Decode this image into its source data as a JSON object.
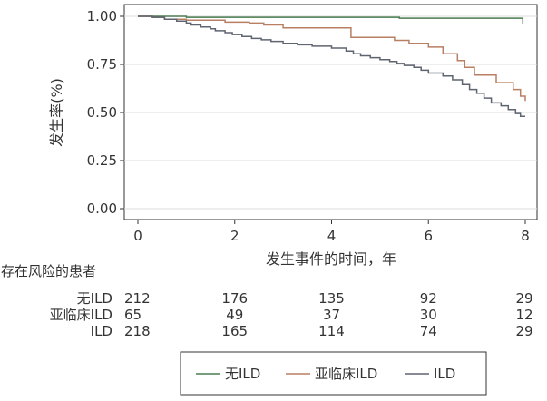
{
  "chart_data": {
    "type": "line",
    "subtype": "kaplan-meier step curves",
    "xlabel": "发生事件的时间，年",
    "ylabel": "发生率(%)",
    "xlim": [
      0,
      8
    ],
    "ylim": [
      0,
      1
    ],
    "xticks": [
      0,
      2,
      4,
      6,
      8
    ],
    "xtick_labels": [
      "0",
      "2",
      "4",
      "6",
      "8"
    ],
    "yticks": [
      0,
      0.25,
      0.5,
      0.75,
      1.0
    ],
    "ytick_labels": [
      "0.00",
      "0.25",
      "0.50",
      "0.75",
      "1.00"
    ],
    "grid": "horizontal gridlines",
    "series": [
      {
        "name": "无ILD",
        "color": "#4a7d50",
        "points": [
          [
            0,
            1.0
          ],
          [
            1.0,
            1.0
          ],
          [
            1.0,
            0.995
          ],
          [
            5.4,
            0.995
          ],
          [
            5.4,
            0.99
          ],
          [
            7.95,
            0.99
          ],
          [
            7.95,
            0.96
          ]
        ]
      },
      {
        "name": "亚临床ILD",
        "color": "#b87f62",
        "points": [
          [
            0,
            1.0
          ],
          [
            0.3,
            1.0
          ],
          [
            0.3,
            0.995
          ],
          [
            0.55,
            0.995
          ],
          [
            0.55,
            0.985
          ],
          [
            1.0,
            0.985
          ],
          [
            1.0,
            0.98
          ],
          [
            1.8,
            0.98
          ],
          [
            1.8,
            0.97
          ],
          [
            2.3,
            0.97
          ],
          [
            2.3,
            0.965
          ],
          [
            2.6,
            0.965
          ],
          [
            2.6,
            0.955
          ],
          [
            3.0,
            0.955
          ],
          [
            3.0,
            0.94
          ],
          [
            4.4,
            0.94
          ],
          [
            4.4,
            0.89
          ],
          [
            5.3,
            0.89
          ],
          [
            5.3,
            0.875
          ],
          [
            5.6,
            0.875
          ],
          [
            5.6,
            0.86
          ],
          [
            6.0,
            0.86
          ],
          [
            6.0,
            0.84
          ],
          [
            6.3,
            0.84
          ],
          [
            6.3,
            0.805
          ],
          [
            6.6,
            0.805
          ],
          [
            6.6,
            0.77
          ],
          [
            6.75,
            0.77
          ],
          [
            6.75,
            0.735
          ],
          [
            6.95,
            0.735
          ],
          [
            6.95,
            0.695
          ],
          [
            7.4,
            0.695
          ],
          [
            7.4,
            0.655
          ],
          [
            7.75,
            0.655
          ],
          [
            7.75,
            0.62
          ],
          [
            7.9,
            0.62
          ],
          [
            7.9,
            0.585
          ],
          [
            8.0,
            0.585
          ],
          [
            8.0,
            0.56
          ]
        ]
      },
      {
        "name": "ILD",
        "color": "#5e6470",
        "points": [
          [
            0,
            1.0
          ],
          [
            0.3,
            1.0
          ],
          [
            0.3,
            0.995
          ],
          [
            0.55,
            0.995
          ],
          [
            0.55,
            0.985
          ],
          [
            0.8,
            0.985
          ],
          [
            0.8,
            0.975
          ],
          [
            1.0,
            0.975
          ],
          [
            1.0,
            0.965
          ],
          [
            1.1,
            0.965
          ],
          [
            1.1,
            0.955
          ],
          [
            1.3,
            0.955
          ],
          [
            1.3,
            0.945
          ],
          [
            1.5,
            0.945
          ],
          [
            1.5,
            0.935
          ],
          [
            1.6,
            0.935
          ],
          [
            1.6,
            0.925
          ],
          [
            1.8,
            0.925
          ],
          [
            1.8,
            0.915
          ],
          [
            1.95,
            0.915
          ],
          [
            1.95,
            0.905
          ],
          [
            2.15,
            0.905
          ],
          [
            2.15,
            0.895
          ],
          [
            2.35,
            0.895
          ],
          [
            2.35,
            0.885
          ],
          [
            2.55,
            0.885
          ],
          [
            2.55,
            0.878
          ],
          [
            2.75,
            0.878
          ],
          [
            2.75,
            0.87
          ],
          [
            3.0,
            0.87
          ],
          [
            3.0,
            0.86
          ],
          [
            3.3,
            0.86
          ],
          [
            3.3,
            0.852
          ],
          [
            3.6,
            0.852
          ],
          [
            3.6,
            0.845
          ],
          [
            4.0,
            0.845
          ],
          [
            4.0,
            0.835
          ],
          [
            4.3,
            0.835
          ],
          [
            4.3,
            0.82
          ],
          [
            4.45,
            0.82
          ],
          [
            4.45,
            0.805
          ],
          [
            4.6,
            0.805
          ],
          [
            4.6,
            0.795
          ],
          [
            4.8,
            0.795
          ],
          [
            4.8,
            0.785
          ],
          [
            5.0,
            0.785
          ],
          [
            5.0,
            0.775
          ],
          [
            5.2,
            0.775
          ],
          [
            5.2,
            0.765
          ],
          [
            5.35,
            0.765
          ],
          [
            5.35,
            0.755
          ],
          [
            5.5,
            0.755
          ],
          [
            5.5,
            0.745
          ],
          [
            5.7,
            0.745
          ],
          [
            5.7,
            0.735
          ],
          [
            5.85,
            0.735
          ],
          [
            5.85,
            0.72
          ],
          [
            6.0,
            0.72
          ],
          [
            6.0,
            0.705
          ],
          [
            6.3,
            0.705
          ],
          [
            6.3,
            0.69
          ],
          [
            6.5,
            0.69
          ],
          [
            6.5,
            0.67
          ],
          [
            6.7,
            0.67
          ],
          [
            6.7,
            0.645
          ],
          [
            6.85,
            0.645
          ],
          [
            6.85,
            0.62
          ],
          [
            7.0,
            0.62
          ],
          [
            7.0,
            0.6
          ],
          [
            7.15,
            0.6
          ],
          [
            7.15,
            0.575
          ],
          [
            7.3,
            0.575
          ],
          [
            7.3,
            0.55
          ],
          [
            7.5,
            0.55
          ],
          [
            7.5,
            0.535
          ],
          [
            7.65,
            0.535
          ],
          [
            7.65,
            0.515
          ],
          [
            7.8,
            0.515
          ],
          [
            7.8,
            0.495
          ],
          [
            7.9,
            0.495
          ],
          [
            7.9,
            0.48
          ],
          [
            8.0,
            0.48
          ]
        ]
      }
    ],
    "risk_table": {
      "title": "存在风险的患者",
      "times": [
        0,
        2,
        4,
        6,
        8
      ],
      "rows": [
        {
          "label": "无ILD",
          "values": [
            "212",
            "176",
            "135",
            "92",
            "29"
          ]
        },
        {
          "label": "亚临床ILD",
          "values": [
            "65",
            "49",
            "37",
            "30",
            "12"
          ]
        },
        {
          "label": "ILD",
          "values": [
            "218",
            "165",
            "114",
            "74",
            "29"
          ]
        }
      ]
    },
    "legend": {
      "position": "bottom-center",
      "entries": [
        {
          "label": "无ILD",
          "color": "#4a7d50"
        },
        {
          "label": "亚临床ILD",
          "color": "#b87f62"
        },
        {
          "label": "ILD",
          "color": "#5e6470"
        }
      ]
    }
  }
}
